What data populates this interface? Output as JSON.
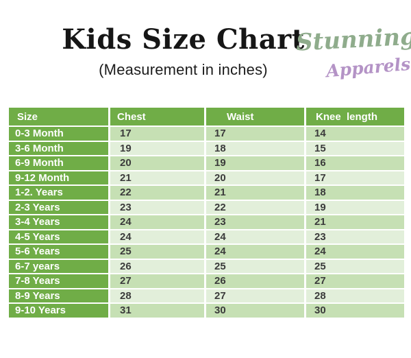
{
  "page": {
    "title": "Kids Size Chart",
    "subtitle": "(Measurement in inches)"
  },
  "brand": {
    "line1": "Stunning",
    "line2": "Apparels",
    "line1_color": "#8fac8c",
    "line2_color": "#b493c6"
  },
  "colors": {
    "header_bg": "#70ad47",
    "size_column_bg": "#70ad47",
    "row_odd_bg": "#c6e0b4",
    "row_even_bg": "#e2efda",
    "header_text": "#ffffff",
    "cell_text": "#3b3b3b",
    "background": "#ffffff"
  },
  "chart_data": {
    "type": "table",
    "title": "Kids Size Chart",
    "subtitle": "(Measurement in inches)",
    "columns": [
      "Size",
      "Chest",
      "Waist",
      "Knee  length"
    ],
    "rows": [
      [
        "0-3 Month",
        17,
        17,
        14
      ],
      [
        "3-6 Month",
        19,
        18,
        15
      ],
      [
        "6-9 Month",
        20,
        19,
        16
      ],
      [
        "9-12 Month",
        21,
        20,
        17
      ],
      [
        "1-2. Years",
        22,
        21,
        18
      ],
      [
        "2-3 Years",
        23,
        22,
        19
      ],
      [
        "3-4 Years",
        24,
        23,
        21
      ],
      [
        "4-5 Years",
        24,
        24,
        23
      ],
      [
        "5-6 Years",
        25,
        24,
        24
      ],
      [
        "6-7 years",
        26,
        25,
        25
      ],
      [
        "7-8 Years",
        27,
        26,
        27
      ],
      [
        "8-9 Years",
        28,
        27,
        28
      ],
      [
        "9-10 Years",
        31,
        30,
        30
      ]
    ]
  }
}
